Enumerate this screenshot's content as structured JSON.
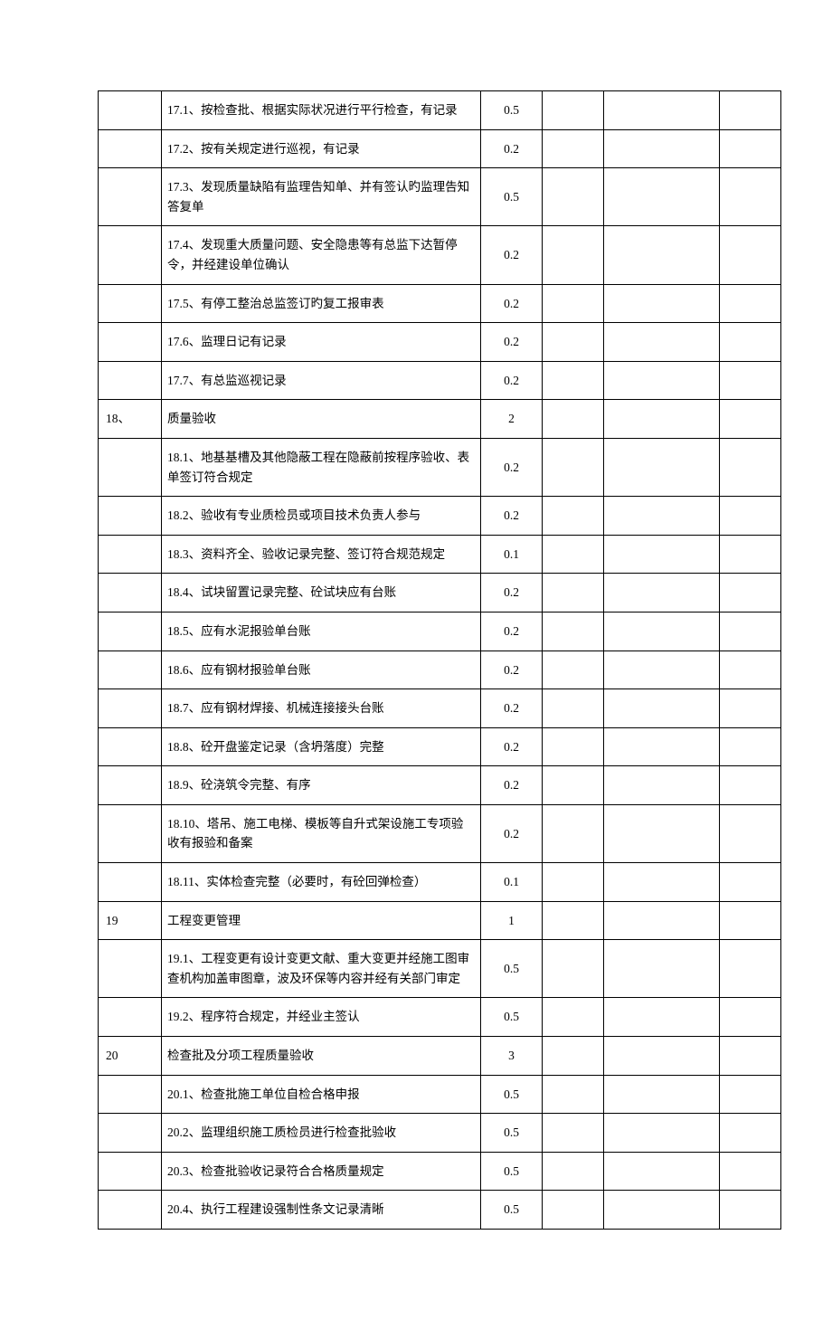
{
  "rows": [
    {
      "num": "",
      "desc": "17.1、按检查批、根据实际状况进行平行检查，有记录",
      "score": "0.5"
    },
    {
      "num": "",
      "desc": "17.2、按有关规定进行巡视，有记录",
      "score": "0.2"
    },
    {
      "num": "",
      "desc": "17.3、发现质量缺陷有监理告知单、并有签认旳监理告知答复单",
      "score": "0.5"
    },
    {
      "num": "",
      "desc": "17.4、发现重大质量问题、安全隐患等有总监下达暂停令，并经建设单位确认",
      "score": "0.2"
    },
    {
      "num": "",
      "desc": "17.5、有停工整治总监签订旳复工报审表",
      "score": "0.2"
    },
    {
      "num": "",
      "desc": "17.6、监理日记有记录",
      "score": "0.2"
    },
    {
      "num": "",
      "desc": "17.7、有总监巡视记录",
      "score": "0.2"
    },
    {
      "num": "18、",
      "desc": "质量验收",
      "score": "2"
    },
    {
      "num": "",
      "desc": "18.1、地基基槽及其他隐蔽工程在隐蔽前按程序验收、表单签订符合规定",
      "score": "0.2"
    },
    {
      "num": "",
      "desc": "18.2、验收有专业质检员或项目技术负责人参与",
      "score": "0.2"
    },
    {
      "num": "",
      "desc": "18.3、资料齐全、验收记录完整、签订符合规范规定",
      "score": "0.1"
    },
    {
      "num": "",
      "desc": "18.4、试块留置记录完整、砼试块应有台账",
      "score": "0.2"
    },
    {
      "num": "",
      "desc": "18.5、应有水泥报验单台账",
      "score": "0.2"
    },
    {
      "num": "",
      "desc": "18.6、应有钢材报验单台账",
      "score": "0.2"
    },
    {
      "num": "",
      "desc": "18.7、应有钢材焊接、机械连接接头台账",
      "score": "0.2"
    },
    {
      "num": "",
      "desc": "18.8、砼开盘鉴定记录（含坍落度）完整",
      "score": "0.2"
    },
    {
      "num": "",
      "desc": "18.9、砼浇筑令完整、有序",
      "score": "0.2"
    },
    {
      "num": "",
      "desc": "18.10、塔吊、施工电梯、模板等自升式架设施工专项验收有报验和备案",
      "score": "0.2"
    },
    {
      "num": "",
      "desc": "18.11、实体检查完整（必要时，有砼回弹检查）",
      "score": "0.1"
    },
    {
      "num": "19",
      "desc": "工程变更管理",
      "score": "1"
    },
    {
      "num": "",
      "desc": "19.1、工程变更有设计变更文献、重大变更并经施工图审查机构加盖审图章，波及环保等内容并经有关部门审定",
      "score": "0.5"
    },
    {
      "num": "",
      "desc": "19.2、程序符合规定，并经业主签认",
      "score": "0.5"
    },
    {
      "num": "20",
      "desc": "检查批及分项工程质量验收",
      "score": "3"
    },
    {
      "num": "",
      "desc": "20.1、检查批施工单位自检合格申报",
      "score": "0.5"
    },
    {
      "num": "",
      "desc": "20.2、监理组织施工质检员进行检查批验收",
      "score": "0.5"
    },
    {
      "num": "",
      "desc": "20.3、检查批验收记录符合合格质量规定",
      "score": "0.5"
    },
    {
      "num": "",
      "desc": "20.4、执行工程建设强制性条文记录清晰",
      "score": "0.5"
    }
  ]
}
